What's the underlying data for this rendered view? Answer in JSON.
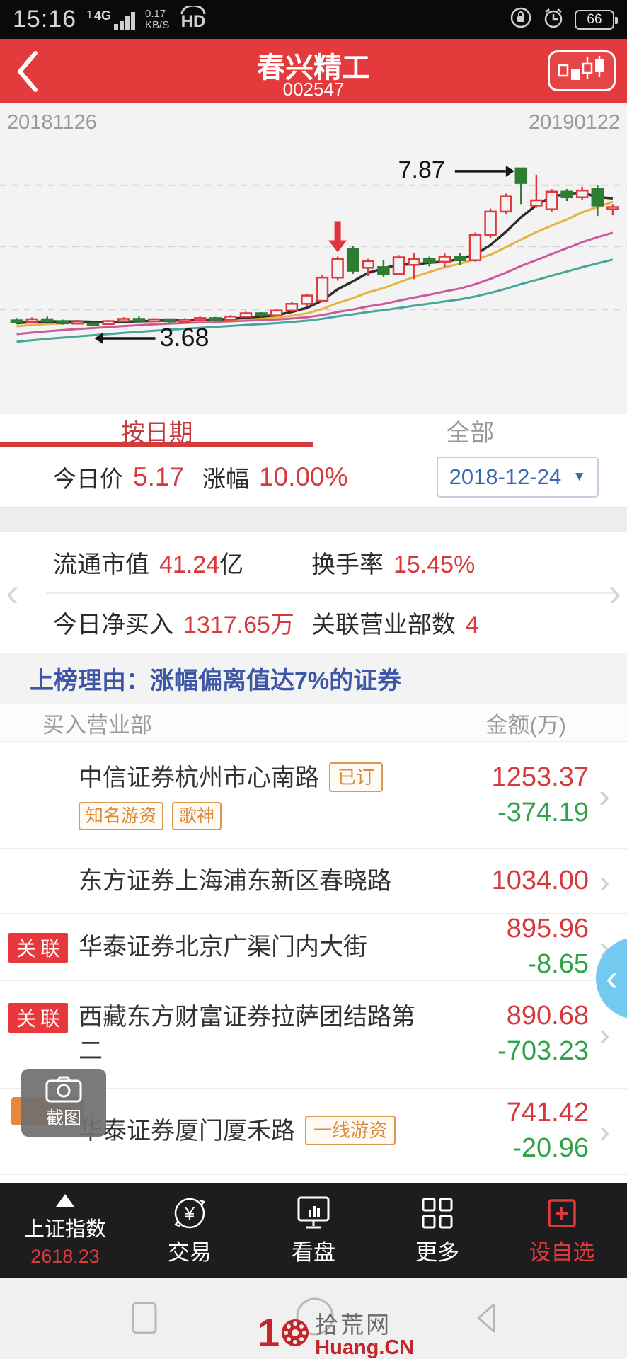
{
  "status_bar": {
    "time": "15:16",
    "sim": "1",
    "network": "4G",
    "speed": "0.17",
    "speed_unit": "KB/S",
    "hd": "HD",
    "battery": "66"
  },
  "header": {
    "title": "春兴精工",
    "code": "002547",
    "bg_color": "#e43a3c"
  },
  "chart": {
    "date_left": "20181126",
    "date_right": "20190122",
    "high_label": "7.87",
    "low_label": "3.68",
    "chart_data": {
      "type": "candlestick",
      "x_start_date": "20181126",
      "x_end_date": "20190122",
      "up_color": "#e03a3c",
      "down_color": "#2e7d33",
      "bg_color": "#f3f3f3",
      "grid_prices": [
        7.42,
        5.79,
        4.11
      ],
      "price_annotations": {
        "high": {
          "day": 33,
          "label": "7.87"
        },
        "low": {
          "day": 5,
          "label": "3.68"
        },
        "sell_marker_day": 21
      },
      "candles": [
        [
          3.82,
          3.88,
          3.72,
          3.78
        ],
        [
          3.78,
          3.9,
          3.75,
          3.85
        ],
        [
          3.85,
          3.92,
          3.77,
          3.8
        ],
        [
          3.8,
          3.84,
          3.7,
          3.74
        ],
        [
          3.74,
          3.83,
          3.71,
          3.79
        ],
        [
          3.74,
          3.77,
          3.68,
          3.72
        ],
        [
          3.72,
          3.83,
          3.7,
          3.8
        ],
        [
          3.8,
          3.9,
          3.78,
          3.86
        ],
        [
          3.86,
          3.92,
          3.78,
          3.81
        ],
        [
          3.81,
          3.88,
          3.79,
          3.85
        ],
        [
          3.85,
          3.87,
          3.76,
          3.8
        ],
        [
          3.8,
          3.88,
          3.77,
          3.84
        ],
        [
          3.84,
          3.92,
          3.81,
          3.88
        ],
        [
          3.88,
          3.91,
          3.8,
          3.84
        ],
        [
          3.84,
          3.96,
          3.82,
          3.92
        ],
        [
          3.92,
          4.05,
          3.89,
          4.01
        ],
        [
          4.01,
          4.04,
          3.91,
          3.95
        ],
        [
          3.95,
          4.12,
          3.93,
          4.08
        ],
        [
          4.08,
          4.31,
          4.04,
          4.26
        ],
        [
          4.26,
          4.53,
          4.2,
          4.48
        ],
        [
          4.34,
          5.02,
          4.3,
          4.96
        ],
        [
          4.96,
          5.52,
          4.88,
          5.46
        ],
        [
          5.72,
          5.8,
          5.06,
          5.14
        ],
        [
          5.22,
          5.46,
          5.0,
          5.4
        ],
        [
          5.24,
          5.42,
          4.98,
          5.06
        ],
        [
          5.06,
          5.56,
          5.02,
          5.5
        ],
        [
          5.3,
          5.62,
          4.92,
          5.45
        ],
        [
          5.45,
          5.52,
          5.26,
          5.38
        ],
        [
          5.38,
          5.6,
          5.24,
          5.52
        ],
        [
          5.52,
          5.62,
          5.3,
          5.42
        ],
        [
          5.42,
          6.16,
          5.38,
          6.1
        ],
        [
          6.1,
          6.8,
          6.02,
          6.72
        ],
        [
          6.72,
          7.2,
          6.64,
          7.12
        ],
        [
          7.87,
          7.87,
          6.92,
          7.48
        ],
        [
          6.88,
          7.7,
          6.82,
          7.02
        ],
        [
          6.78,
          7.32,
          6.7,
          7.25
        ],
        [
          7.25,
          7.32,
          7.0,
          7.1
        ],
        [
          7.1,
          7.38,
          7.03,
          7.28
        ],
        [
          7.32,
          7.42,
          6.6,
          6.88
        ],
        [
          6.8,
          6.92,
          6.62,
          6.84
        ]
      ],
      "ma_windows": [
        5,
        10,
        20,
        30
      ],
      "ma_colors": {
        "5": "#2e2e2e",
        "10": "#e4b43e",
        "20": "#cb5a9b",
        "30": "#49a69b"
      },
      "ma_seed": [
        2.62,
        2.66,
        2.7,
        2.74,
        2.78,
        2.82,
        2.86,
        2.9,
        2.94,
        2.98,
        3.02,
        3.06,
        3.1,
        3.14,
        3.18,
        3.22,
        3.26,
        3.3,
        3.35,
        3.4,
        3.45,
        3.5,
        3.54,
        3.58,
        3.62,
        3.66,
        3.69,
        3.72,
        3.75,
        3.78
      ]
    }
  },
  "tabs": {
    "by_date": "按日期",
    "all": "全部"
  },
  "today": {
    "price_label": "今日价",
    "price": "5.17",
    "change_label": "涨幅",
    "change": "10.00%",
    "date": "2018-12-24"
  },
  "stats": {
    "items": [
      {
        "label": "流通市值",
        "value": "41.24",
        "suffix": "亿"
      },
      {
        "label": "换手率",
        "value": "15.45%",
        "suffix": ""
      },
      {
        "label": "今日净买入",
        "value": "1317.65万",
        "suffix": ""
      },
      {
        "label": "关联营业部数",
        "value": "4",
        "suffix": ""
      }
    ]
  },
  "reason": {
    "text": "上榜理由：涨幅偏离值达7%的证券"
  },
  "table": {
    "col1": "买入营业部",
    "col2": "金额(万)",
    "rows": [
      {
        "name": "中信证券杭州市心南路",
        "inline_badge": "已订",
        "tags": [
          "知名游资",
          "歌神"
        ],
        "buy": "1253.37",
        "sell": "-374.19"
      },
      {
        "name": "东方证券上海浦东新区春晓路",
        "buy": "1034.00"
      },
      {
        "badge": "关联",
        "name": "华泰证券北京广渠门内大街",
        "buy": "895.96",
        "sell": "-8.65"
      },
      {
        "badge": "关联",
        "name": "西藏东方财富证券拉萨团结路第二",
        "buy": "890.68",
        "sell": "-703.23"
      },
      {
        "name": "华泰证券厦门厦禾路",
        "inline_badge": "一线游资",
        "buy": "741.42",
        "sell": "-20.96"
      }
    ]
  },
  "screenshot_tool": {
    "label": "截图"
  },
  "bottom_nav": {
    "index_label": "上证指数",
    "index_value": "2618.23",
    "trade": "交易",
    "watch": "看盘",
    "more": "更多",
    "watchlist": "设自选"
  },
  "watermark": {
    "logo": "1",
    "site": "拾荒网",
    "domain": "Huang.CN"
  }
}
